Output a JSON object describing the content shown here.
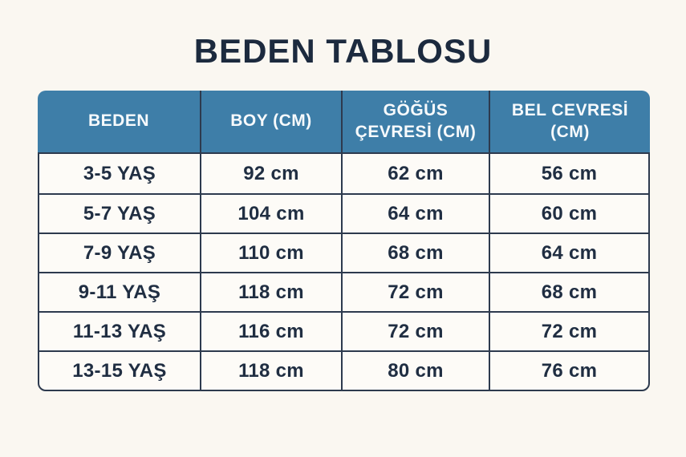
{
  "title": "BEDEN TABLOSU",
  "colors": {
    "page_background": "#FAF7F1",
    "title_text": "#1C2A3E",
    "header_background": "#3E7EA8",
    "header_text": "#F7FAFC",
    "table_border": "#2D3A4E",
    "cell_background": "#FDFBF7",
    "cell_text": "#202E42"
  },
  "table": {
    "columns": [
      "BEDEN",
      "BOY (CM)",
      "GÖĞÜS\nÇEVRESİ (CM)",
      "BEL CEVRESİ\n(CM)"
    ],
    "rows": [
      [
        "3-5 YAŞ",
        "92 cm",
        "62 cm",
        "56 cm"
      ],
      [
        "5-7 YAŞ",
        "104 cm",
        "64 cm",
        "60 cm"
      ],
      [
        "7-9 YAŞ",
        "110 cm",
        "68 cm",
        "64 cm"
      ],
      [
        "9-11 YAŞ",
        "118 cm",
        "72 cm",
        "68 cm"
      ],
      [
        "11-13 YAŞ",
        "116 cm",
        "72 cm",
        "72 cm"
      ],
      [
        "13-15 YAŞ",
        "118 cm",
        "80 cm",
        "76 cm"
      ]
    ]
  }
}
